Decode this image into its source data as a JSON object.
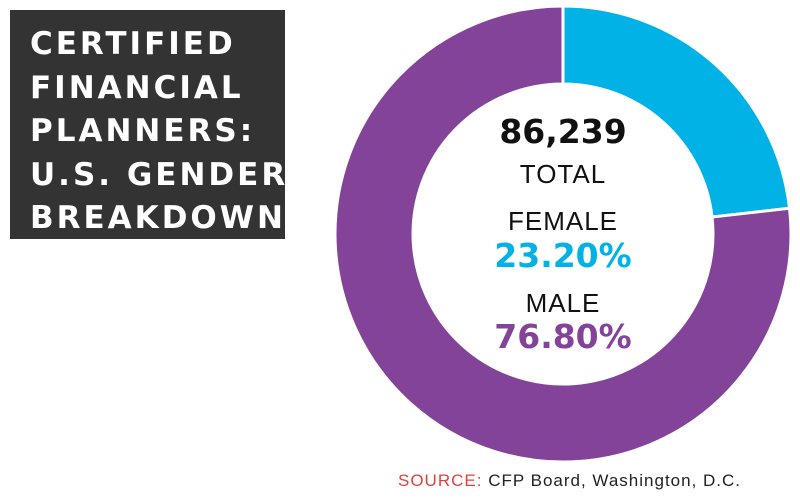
{
  "title_lines": [
    "CERTIFIED",
    "FINANCIAL",
    "PLANNERS:",
    "U.S. GENDER",
    "BREAKDOWN"
  ],
  "colors": {
    "title_background": "#333333",
    "female": "#00b2e6",
    "male": "#834399",
    "source_label": "#e0413b"
  },
  "chart_data": {
    "type": "pie",
    "title": "CERTIFIED FINANCIAL PLANNERS: U.S. GENDER BREAKDOWN",
    "total_value": "86,239",
    "total_label": "TOTAL",
    "slices": [
      {
        "label": "FEMALE",
        "value": 23.2,
        "display": "23.20%",
        "color": "#00b2e6"
      },
      {
        "label": "MALE",
        "value": 76.8,
        "display": "76.80%",
        "color": "#834399"
      }
    ]
  },
  "source": {
    "label": "SOURCE:",
    "text": "CFP Board, Washington, D.C."
  }
}
